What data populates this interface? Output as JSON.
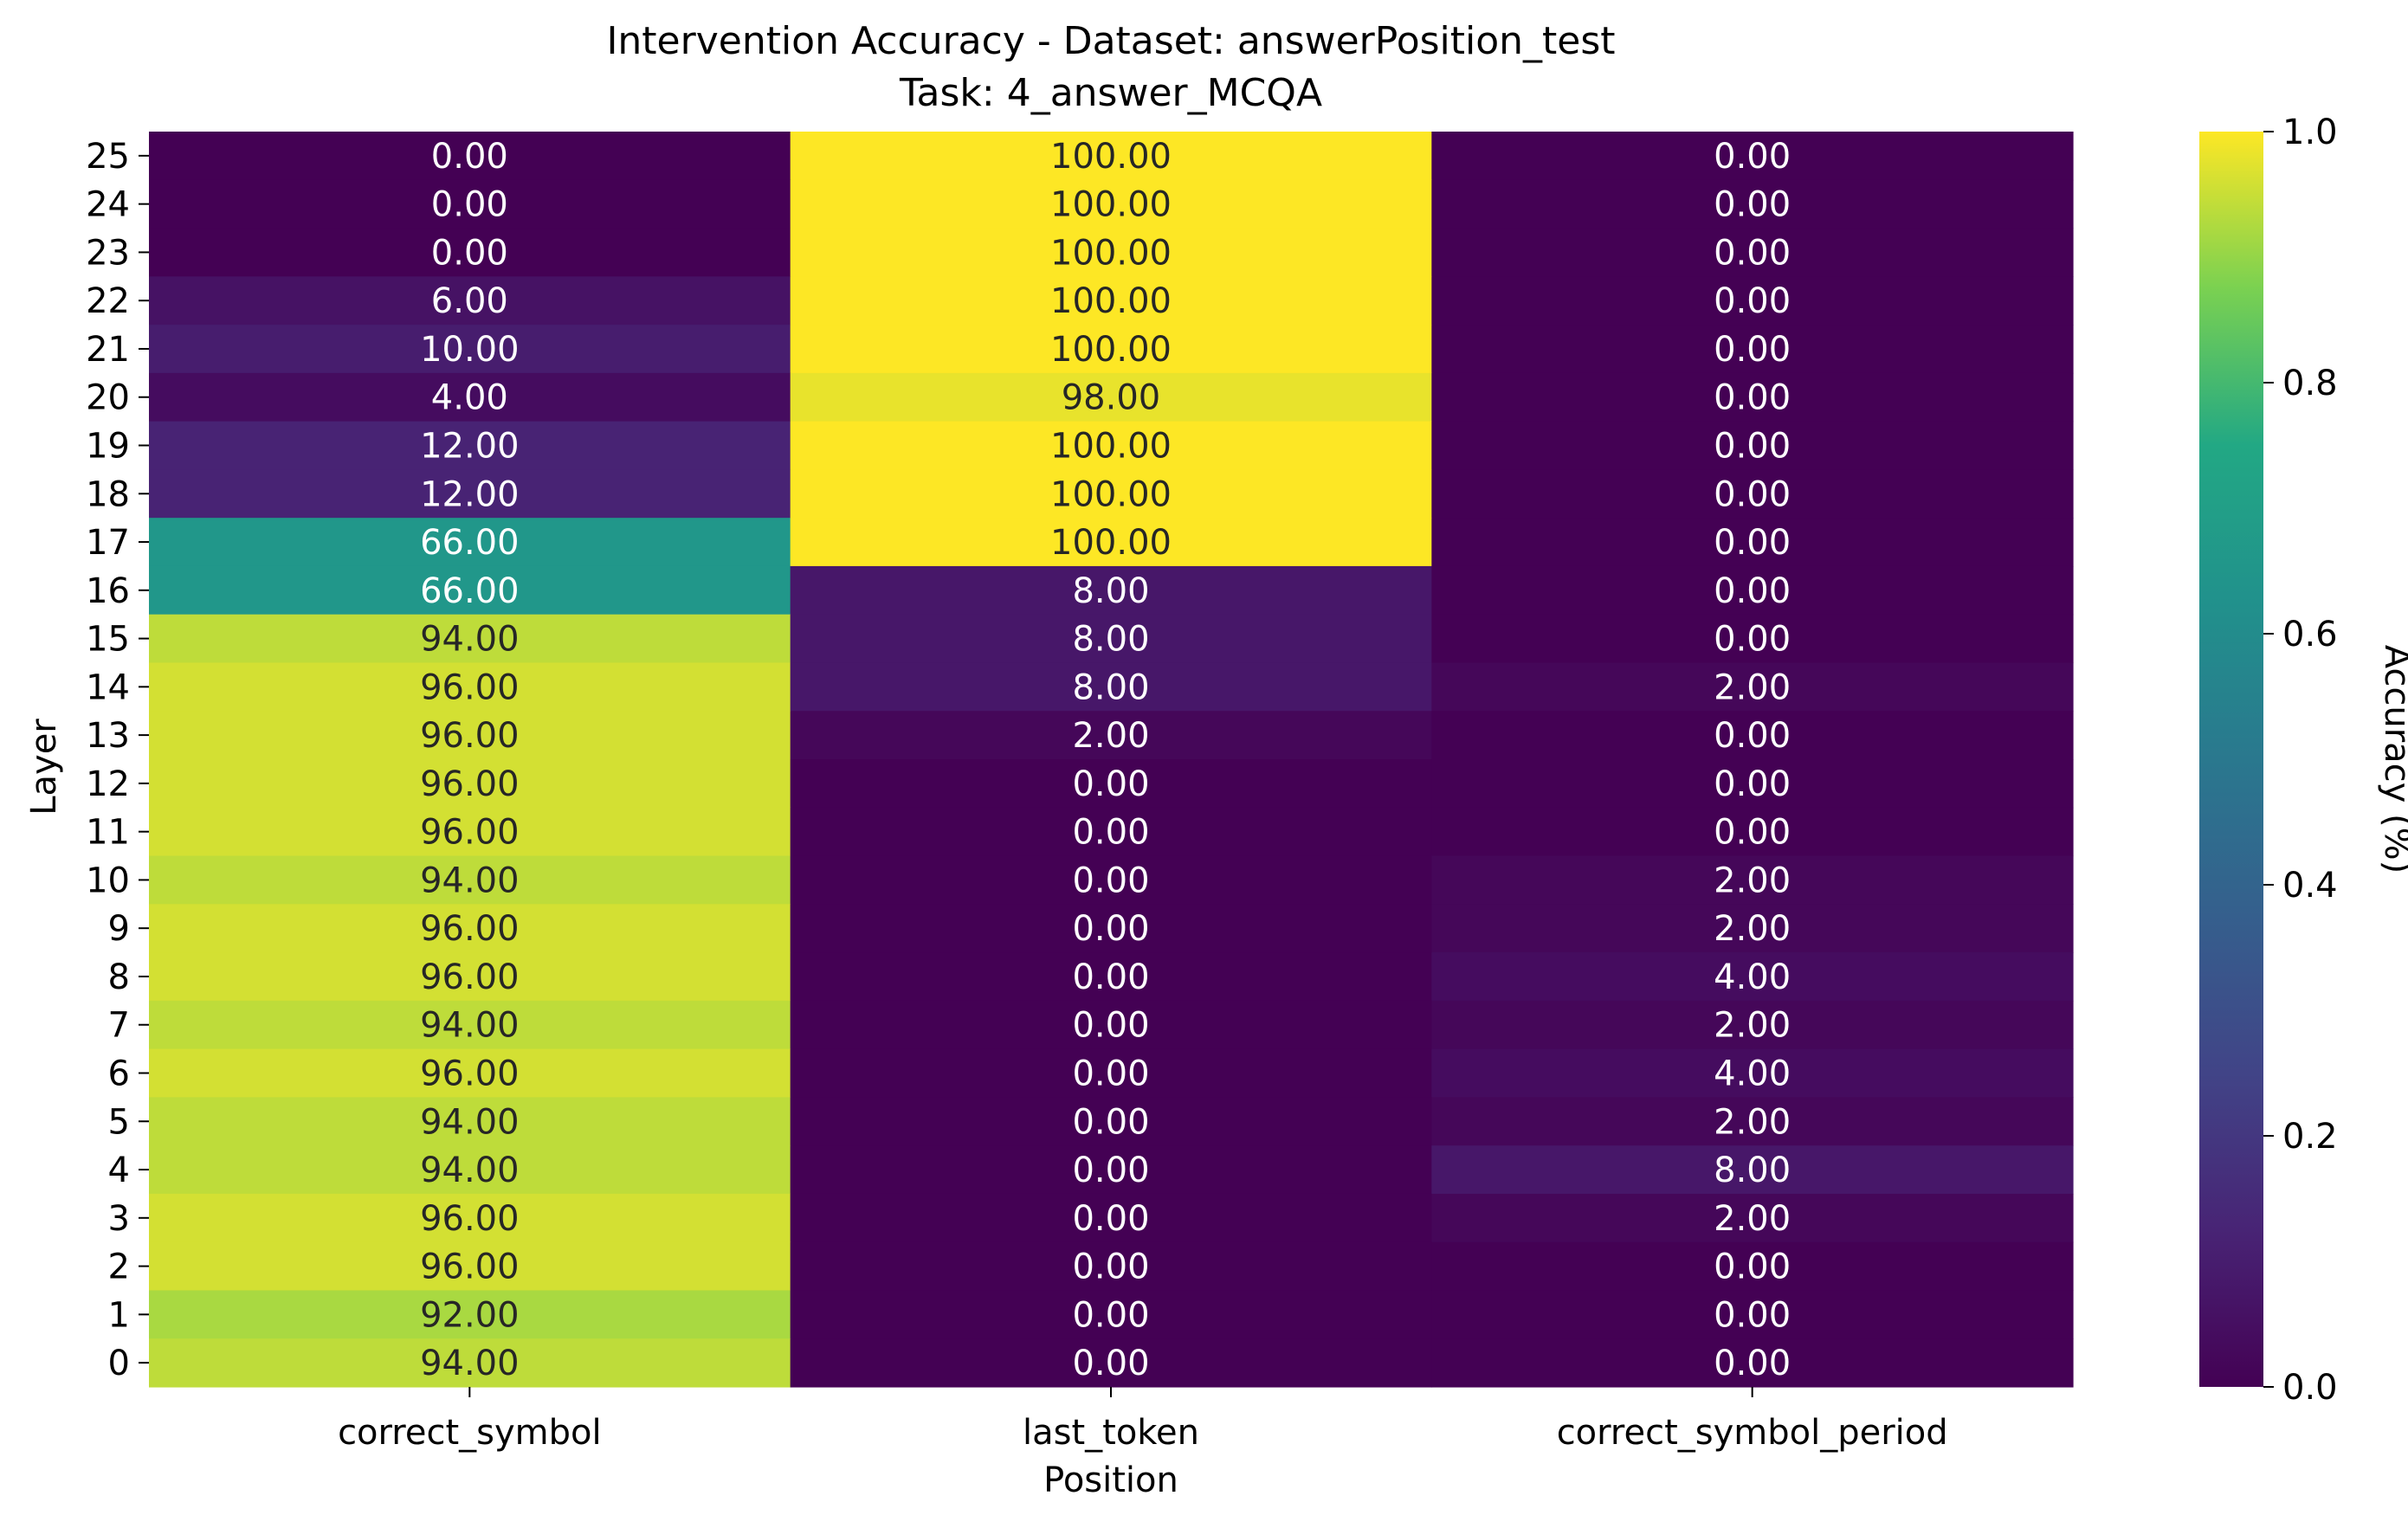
{
  "chart_data": {
    "type": "heatmap",
    "title": "Intervention Accuracy - Dataset: answerPosition_test",
    "subtitle": "Task: 4_answer_MCQA",
    "xlabel": "Position",
    "ylabel": "Layer",
    "x_categories": [
      "correct_symbol",
      "last_token",
      "correct_symbol_period"
    ],
    "y_categories": [
      25,
      24,
      23,
      22,
      21,
      20,
      19,
      18,
      17,
      16,
      15,
      14,
      13,
      12,
      11,
      10,
      9,
      8,
      7,
      6,
      5,
      4,
      3,
      2,
      1,
      0
    ],
    "values": [
      [
        0,
        100,
        0
      ],
      [
        0,
        100,
        0
      ],
      [
        0,
        100,
        0
      ],
      [
        6,
        100,
        0
      ],
      [
        10,
        100,
        0
      ],
      [
        4,
        98,
        0
      ],
      [
        12,
        100,
        0
      ],
      [
        12,
        100,
        0
      ],
      [
        66,
        100,
        0
      ],
      [
        66,
        8,
        0
      ],
      [
        94,
        8,
        0
      ],
      [
        96,
        8,
        2
      ],
      [
        96,
        2,
        0
      ],
      [
        96,
        0,
        0
      ],
      [
        96,
        0,
        0
      ],
      [
        94,
        0,
        2
      ],
      [
        96,
        0,
        2
      ],
      [
        96,
        0,
        4
      ],
      [
        94,
        0,
        2
      ],
      [
        96,
        0,
        4
      ],
      [
        94,
        0,
        2
      ],
      [
        94,
        0,
        8
      ],
      [
        96,
        0,
        2
      ],
      [
        96,
        0,
        0
      ],
      [
        92,
        0,
        0
      ],
      [
        94,
        0,
        0
      ]
    ],
    "value_format": "2 decimals",
    "colormap": "viridis",
    "colorbar": {
      "label": "Accuracy (%)",
      "range": [
        0.0,
        1.0
      ],
      "ticks": [
        "0.0",
        "0.2",
        "0.4",
        "0.6",
        "0.8",
        "1.0"
      ]
    }
  }
}
